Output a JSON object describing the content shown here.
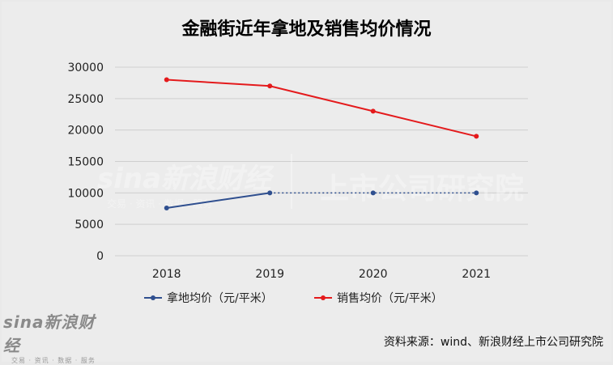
{
  "title": "金融街近年拿地及销售均价情况",
  "source": "资料来源：wind、新浪财经上市公司研究院",
  "watermark": {
    "brand": "sina新浪财经",
    "sub": "交易 · 资讯 · 数据 · 服务",
    "right": "上市公司研究院"
  },
  "logo": {
    "brand": "sina新浪财经",
    "sub": "交易 · 资讯 · 数据 · 服务"
  },
  "colors": {
    "land": "#2f4f8f",
    "sales": "#e41a1c",
    "grid": "#cfcfcf"
  },
  "chart_data": {
    "type": "line",
    "title": "金融街近年拿地及销售均价情况",
    "categories": [
      "2018",
      "2019",
      "2020",
      "2021"
    ],
    "ylim": [
      0,
      30000
    ],
    "yticks": [
      0,
      5000,
      10000,
      15000,
      20000,
      25000,
      30000
    ],
    "grid": true,
    "legend_position": "bottom",
    "series": [
      {
        "name": "拿地均价（元/平米）",
        "values": [
          7600,
          10000,
          10000,
          10000
        ],
        "dotted_from_index": 1
      },
      {
        "name": "销售均价（元/平米）",
        "values": [
          28000,
          27000,
          23000,
          19000
        ]
      }
    ]
  }
}
